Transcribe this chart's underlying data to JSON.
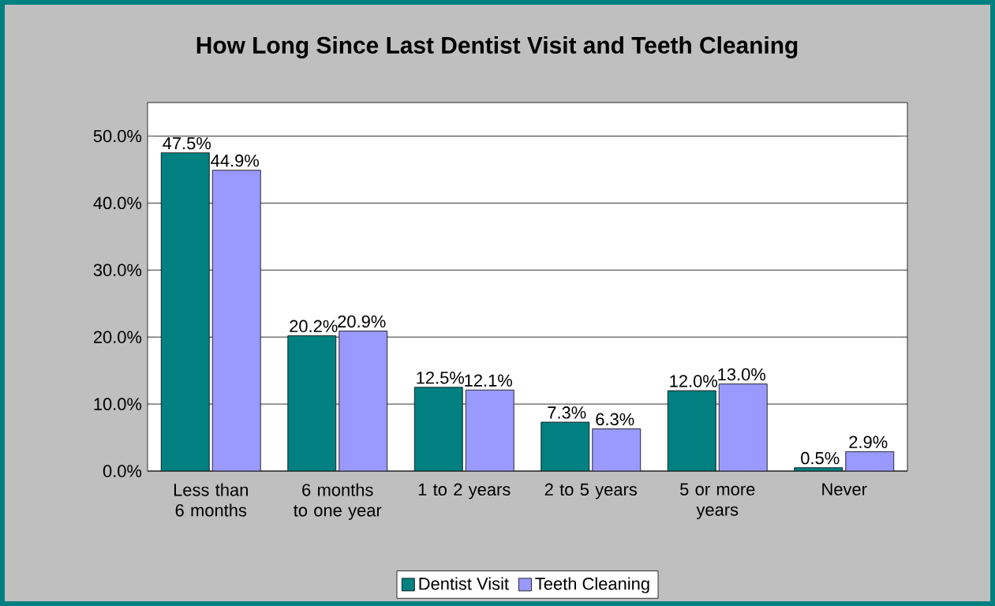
{
  "chart_data": {
    "type": "bar",
    "title": "How Long Since Last Dentist Visit and Teeth Cleaning",
    "categories": [
      "Less than 6 months",
      "6 months to one year",
      "1 to 2 years",
      "2 to 5 years",
      "5 or more years",
      "Never"
    ],
    "series": [
      {
        "name": "Dentist Visit",
        "color": "#008080",
        "values": [
          47.5,
          20.2,
          12.5,
          7.3,
          12.0,
          0.5
        ],
        "value_labels": [
          "47.5%",
          "20.2%",
          "12.5%",
          "7.3%",
          "12.0%",
          "0.5%"
        ]
      },
      {
        "name": "Teeth Cleaning",
        "color": "#9999ff",
        "values": [
          44.9,
          20.9,
          12.1,
          6.3,
          13.0,
          2.9
        ],
        "value_labels": [
          "44.9%",
          "20.9%",
          "12.1%",
          "6.3%",
          "13.0%",
          "2.9%"
        ]
      }
    ],
    "ylim": [
      0,
      55
    ],
    "yticks": [
      {
        "value": 0,
        "label": "0.0%"
      },
      {
        "value": 10,
        "label": "10.0%"
      },
      {
        "value": 20,
        "label": "20.0%"
      },
      {
        "value": 30,
        "label": "30.0%"
      },
      {
        "value": 40,
        "label": "40.0%"
      },
      {
        "value": 50,
        "label": "50.0%"
      }
    ],
    "grid": "y",
    "legend": "bottom"
  }
}
